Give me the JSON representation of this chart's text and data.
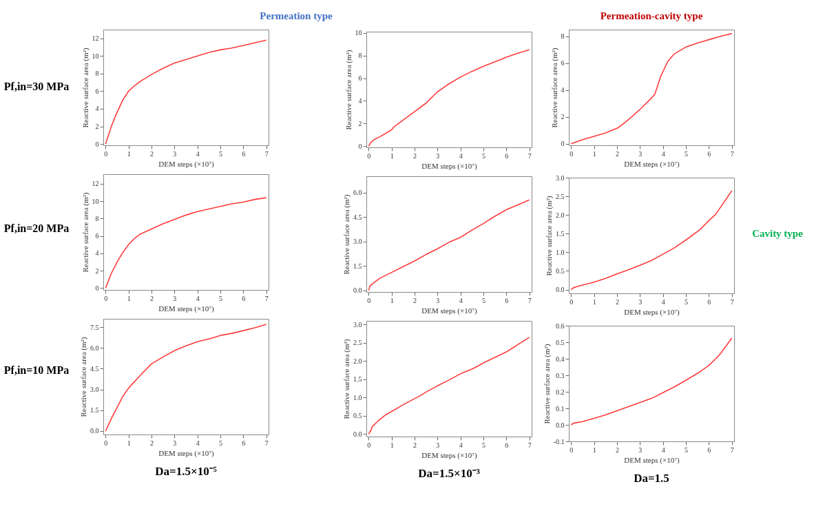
{
  "chart_data": [
    {
      "type": "line",
      "xlabel": "DEM steps (×10⁷)",
      "ylabel": "Reactive surface area (m²)",
      "color": "#ff3b3b",
      "annotations": [
        "Pf,in=30 MPa",
        "Permeation type"
      ],
      "xlim": [
        -0.1,
        7.1
      ],
      "xticks": [
        0,
        1,
        2,
        3,
        4,
        5,
        6,
        7
      ],
      "ylim": [
        -0.15,
        13
      ],
      "yticks": [
        0,
        2,
        4,
        6,
        8,
        10,
        12
      ],
      "x": [
        0,
        0.25,
        0.5,
        0.75,
        1,
        1.25,
        1.5,
        2,
        2.5,
        3,
        3.5,
        4,
        4.5,
        5,
        5.5,
        6,
        6.5,
        7
      ],
      "values": [
        0,
        2.0,
        3.6,
        5.0,
        6.0,
        6.6,
        7.1,
        7.9,
        8.6,
        9.2,
        9.6,
        10.0,
        10.4,
        10.7,
        10.9,
        11.2,
        11.5,
        11.8
      ]
    },
    {
      "type": "line",
      "xlabel": "DEM steps (×10⁷)",
      "ylabel": "Reactive surface area (m²)",
      "color": "#ff3b3b",
      "xlim": [
        -0.1,
        7.1
      ],
      "xticks": [
        0,
        1,
        2,
        3,
        4,
        5,
        6,
        7
      ],
      "ylim": [
        -0.1,
        10.1
      ],
      "yticks": [
        0,
        2,
        4,
        6,
        8,
        10
      ],
      "x": [
        0,
        0.1,
        0.25,
        0.5,
        1,
        1.1,
        1.5,
        2,
        2.5,
        2.7,
        3,
        3.5,
        4,
        4.5,
        5,
        5.5,
        6,
        6.5,
        7
      ],
      "values": [
        0,
        0.35,
        0.6,
        0.85,
        1.45,
        1.7,
        2.3,
        3.05,
        3.8,
        4.2,
        4.8,
        5.5,
        6.1,
        6.6,
        7.05,
        7.45,
        7.85,
        8.2,
        8.5
      ]
    },
    {
      "type": "line",
      "xlabel": "DEM steps (×10⁷)",
      "ylabel": "Reactive surface area (m²)",
      "color": "#ff3b3b",
      "annotations": [
        "Permeation-cavity type"
      ],
      "xlim": [
        -0.1,
        7.1
      ],
      "xticks": [
        0,
        1,
        2,
        3,
        4,
        5,
        6,
        7
      ],
      "ylim": [
        -0.12,
        8.5
      ],
      "yticks": [
        0,
        2,
        4,
        6,
        8
      ],
      "x": [
        0,
        0.5,
        1,
        1.5,
        2,
        2.1,
        2.5,
        3,
        3.5,
        3.65,
        3.9,
        4.2,
        4.5,
        5,
        5.5,
        6,
        6.5,
        7
      ],
      "values": [
        0,
        0.3,
        0.55,
        0.8,
        1.15,
        1.25,
        1.8,
        2.55,
        3.4,
        3.7,
        5.0,
        6.1,
        6.7,
        7.2,
        7.5,
        7.75,
        8.0,
        8.2
      ]
    },
    {
      "type": "line",
      "xlabel": "DEM steps (×10⁷)",
      "ylabel": "Reactive surface area (m²)",
      "color": "#ff3b3b",
      "annotations": [
        "Pf,in=20 MPa"
      ],
      "xlim": [
        -0.1,
        7.1
      ],
      "xticks": [
        0,
        1,
        2,
        3,
        4,
        5,
        6,
        7
      ],
      "ylim": [
        -0.2,
        13.1
      ],
      "yticks": [
        0,
        2,
        4,
        6,
        8,
        10,
        12
      ],
      "x": [
        0,
        0.25,
        0.5,
        0.75,
        1,
        1.25,
        1.5,
        2,
        2.5,
        3,
        3.5,
        4,
        4.5,
        5,
        5.5,
        6,
        6.5,
        7
      ],
      "values": [
        0,
        1.7,
        3.0,
        4.1,
        5.0,
        5.7,
        6.2,
        6.8,
        7.4,
        7.9,
        8.4,
        8.8,
        9.1,
        9.4,
        9.7,
        9.9,
        10.2,
        10.4
      ]
    },
    {
      "type": "line",
      "xlabel": "DEM steps (×10⁷)",
      "ylabel": "Reactive surface area (m²)",
      "color": "#ff3b3b",
      "xlim": [
        -0.1,
        7.1
      ],
      "xticks": [
        0,
        1,
        2,
        3,
        4,
        5,
        6,
        7
      ],
      "ylim": [
        -0.1,
        7
      ],
      "yticks": [
        {
          "value": 0,
          "label": "0.0"
        },
        1.5,
        {
          "value": 3,
          "label": "3.0"
        },
        4.5,
        {
          "value": 6,
          "label": "6.0"
        }
      ],
      "x": [
        0,
        0.05,
        0.25,
        0.5,
        1,
        1.5,
        2,
        2.5,
        3,
        3.5,
        4,
        4.5,
        5,
        5.5,
        6,
        6.5,
        7
      ],
      "values": [
        0,
        0.25,
        0.5,
        0.75,
        1.1,
        1.45,
        1.8,
        2.2,
        2.55,
        2.95,
        3.25,
        3.7,
        4.1,
        4.55,
        4.95,
        5.25,
        5.55
      ]
    },
    {
      "type": "line",
      "xlabel": "DEM steps (×10⁷)",
      "ylabel": "Reactive surface area (m²)",
      "color": "#ff3b3b",
      "annotations": [
        "Cavity type"
      ],
      "xlim": [
        -0.1,
        7.1
      ],
      "xticks": [
        0,
        1,
        2,
        3,
        4,
        5,
        6,
        7
      ],
      "ylim": [
        -0.1,
        3.0
      ],
      "yticks": [
        {
          "value": 0,
          "label": "0.0"
        },
        0.5,
        {
          "value": 1,
          "label": "1.0"
        },
        1.5,
        {
          "value": 2,
          "label": "2.0"
        },
        2.5,
        {
          "value": 3,
          "label": "3.0"
        }
      ],
      "x": [
        0,
        0.1,
        0.25,
        0.5,
        1,
        1.5,
        2,
        2.5,
        3,
        3.5,
        4,
        4.5,
        5,
        5.6,
        6,
        6.3,
        6.5,
        7
      ],
      "values": [
        0,
        0.05,
        0.08,
        0.12,
        0.2,
        0.3,
        0.42,
        0.53,
        0.65,
        0.78,
        0.95,
        1.12,
        1.33,
        1.6,
        1.85,
        2.02,
        2.2,
        2.65
      ]
    },
    {
      "type": "line",
      "xlabel": "DEM steps (×10⁷)",
      "ylabel": "Reactive surface area (m²)",
      "color": "#ff3b3b",
      "annotations": [
        "Pf,in=10 MPa",
        "Da=1.5×10⁻⁵"
      ],
      "xlim": [
        -0.1,
        7.1
      ],
      "xticks": [
        0,
        1,
        2,
        3,
        4,
        5,
        6,
        7
      ],
      "ylim": [
        -0.25,
        8.1
      ],
      "yticks": [
        {
          "value": 0,
          "label": "0.0"
        },
        1.5,
        {
          "value": 3,
          "label": "3.0"
        },
        4.5,
        {
          "value": 6,
          "label": "6.0"
        },
        7.5
      ],
      "x": [
        0,
        0.25,
        0.5,
        0.75,
        1,
        1.5,
        2,
        2.5,
        3,
        3.5,
        4,
        4.5,
        4.8,
        5,
        5.5,
        6,
        6.5,
        7
      ],
      "values": [
        0,
        0.9,
        1.7,
        2.5,
        3.1,
        4.0,
        4.85,
        5.35,
        5.8,
        6.15,
        6.45,
        6.65,
        6.8,
        6.9,
        7.05,
        7.25,
        7.45,
        7.7
      ]
    },
    {
      "type": "line",
      "xlabel": "DEM steps (×10⁷)",
      "ylabel": "Reactive surface area (m²)",
      "color": "#ff3b3b",
      "annotations": [
        "Da=1.5×10⁻³"
      ],
      "xlim": [
        -0.1,
        7.1
      ],
      "xticks": [
        0,
        1,
        2,
        3,
        4,
        5,
        6,
        7
      ],
      "ylim": [
        -0.07,
        3.1
      ],
      "yticks": [
        {
          "value": 0,
          "label": "0.0"
        },
        0.5,
        {
          "value": 1,
          "label": "1.0"
        },
        1.5,
        {
          "value": 2,
          "label": "2.0"
        },
        2.5,
        {
          "value": 3,
          "label": "3.0"
        }
      ],
      "x": [
        0,
        0.1,
        0.15,
        0.4,
        0.75,
        1,
        1.5,
        2,
        2.25,
        2.5,
        3,
        3.5,
        4,
        4.5,
        4.75,
        5,
        5.5,
        6,
        6.25,
        6.5,
        7
      ],
      "values": [
        0,
        0.1,
        0.2,
        0.35,
        0.53,
        0.62,
        0.8,
        0.97,
        1.05,
        1.15,
        1.32,
        1.48,
        1.65,
        1.78,
        1.86,
        1.95,
        2.1,
        2.25,
        2.35,
        2.45,
        2.65
      ]
    },
    {
      "type": "line",
      "xlabel": "DEM steps (×10⁷)",
      "ylabel": "Reactive surface area (m²)",
      "color": "#ff3b3b",
      "annotations": [
        "Da=1.5"
      ],
      "xlim": [
        -0.1,
        7.1
      ],
      "xticks": [
        0,
        1,
        2,
        3,
        4,
        5,
        6,
        7
      ],
      "ylim": [
        -0.1,
        0.6
      ],
      "yticks": [
        -0.1,
        {
          "value": 0,
          "label": "0.0"
        },
        0.1,
        0.2,
        0.3,
        0.4,
        0.5,
        0.6
      ],
      "x": [
        0,
        0.1,
        0.5,
        1,
        1.5,
        2,
        2.5,
        3,
        3.5,
        4,
        4.5,
        5,
        5.6,
        6,
        6.3,
        6.5,
        7
      ],
      "values": [
        0,
        0.01,
        0.02,
        0.04,
        0.06,
        0.085,
        0.11,
        0.135,
        0.16,
        0.195,
        0.23,
        0.27,
        0.32,
        0.36,
        0.4,
        0.43,
        0.525
      ]
    }
  ]
}
